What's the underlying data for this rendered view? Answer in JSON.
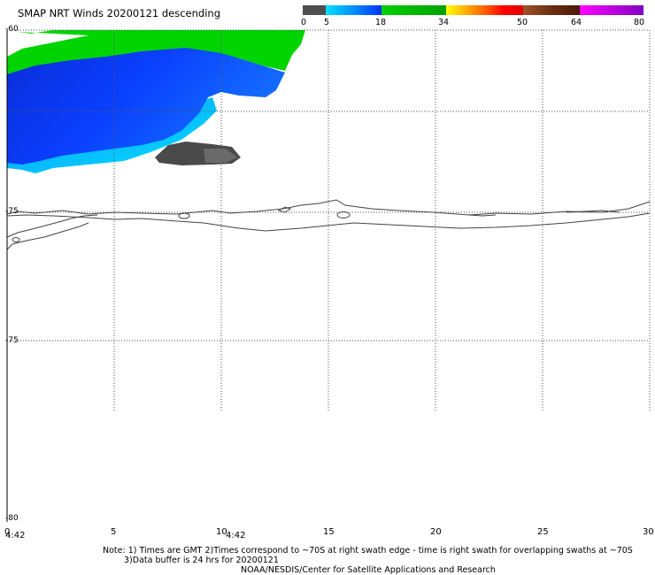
{
  "title": "SMAP NRT Winds  20200121 descending",
  "legend": {
    "tick_labels": [
      "0",
      "5",
      "18",
      "34",
      "50",
      "64",
      "80"
    ],
    "colors": [
      "#5a5a5a",
      "#00d8ff",
      "#0060ff",
      "#00c000",
      "#ffd000",
      "#ff6000",
      "#ff0000",
      "#8b4513",
      "#ff00ff"
    ]
  },
  "y_axis": {
    "labels": [
      "-60",
      "",
      "-75",
      "-75",
      "-80"
    ]
  },
  "x_axis": {
    "labels": [
      "0",
      "5",
      "10",
      "15",
      "20",
      "25",
      "30"
    ]
  },
  "times": [
    "4:42",
    "4:42"
  ],
  "notes": [
    "Note: 1) Times are GMT 2)Times correspond to ~70S at right swath edge - time is right swath for overlapping swaths at ~70S",
    "3)Data buffer is 24 hrs for 20200121",
    "NOAA/NESDIS/Center for Satellite Applications and Research"
  ],
  "colors": {
    "wind_green": "#00d800",
    "wind_blue": "#0a3cff",
    "wind_cyan": "#00d8ff",
    "wind_gray": "#555555",
    "coastline": "#444444",
    "grid": "#555555"
  }
}
